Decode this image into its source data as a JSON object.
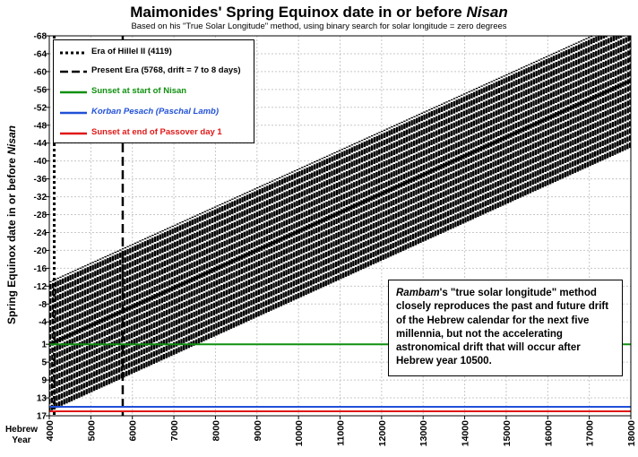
{
  "chart_data": {
    "type": "line",
    "title": "Maimonides' Spring Equinox date in or before ",
    "title_italic": "Nisan",
    "subtitle": "Based on his \"True Solar Longitude\" method, using binary search for solar longitude = zero degrees",
    "ylabel": "Spring Equinox date in or before ",
    "ylabel_italic": "Nisan",
    "xlabel": "Hebrew Year",
    "xlabel_line1": "Hebrew",
    "xlabel_line2": "Year",
    "xlim": [
      4000,
      18000
    ],
    "ylim": [
      17,
      -68
    ],
    "y_inverted": true,
    "grid": true,
    "x_ticks": [
      4000,
      5000,
      6000,
      7000,
      8000,
      9000,
      10000,
      11000,
      12000,
      13000,
      14000,
      15000,
      16000,
      17000,
      18000
    ],
    "y_ticks": [
      -68,
      -64,
      -60,
      -56,
      -52,
      -48,
      -44,
      -40,
      -36,
      -32,
      -28,
      -24,
      -20,
      -16,
      -12,
      -8,
      -4,
      1,
      5,
      9,
      13,
      17
    ],
    "y_tick_labels": [
      "-68",
      "-64",
      "-60",
      "-56",
      "-52",
      "-48",
      "-44",
      "-40",
      "-36",
      "-32",
      "-28",
      "-24",
      "-20",
      "-16",
      "-12",
      "-8",
      "-4",
      "1",
      "5",
      "9",
      "13",
      "17"
    ],
    "equinox_band": {
      "x_start": 4000,
      "x_end": 18000,
      "trend_start": 1,
      "trend_end": -58,
      "upper_offset": -14,
      "lower_offset": 15,
      "color": "#000000"
    },
    "series": [
      {
        "name": "Era of Hillel II (4119)",
        "kind": "vline",
        "x": 4119,
        "style": "dotted",
        "color": "#000000"
      },
      {
        "name": "Present Era (5768, drift = 7 to 8 days)",
        "kind": "vline",
        "x": 5768,
        "style": "dashed",
        "color": "#000000"
      },
      {
        "name": "Sunset at start of Nisan",
        "kind": "hline",
        "y": 1,
        "color": "#109010"
      },
      {
        "name": "Korban Pesach (Paschal Lamb)",
        "kind": "hline",
        "y": 15,
        "color": "#2050d8"
      },
      {
        "name": "Sunset at end of Passover day 1",
        "kind": "hline",
        "y": 16,
        "color": "#e01818"
      }
    ],
    "legend_position": "top-left",
    "annotation": {
      "italic_part": "Rambam",
      "text": "'s \"true solar longitude\" method closely reproduces the past and future drift of the Hebrew calendar for the next five millennia, but not the accelerating astronomical drift that will occur after Hebrew year 10500."
    }
  }
}
